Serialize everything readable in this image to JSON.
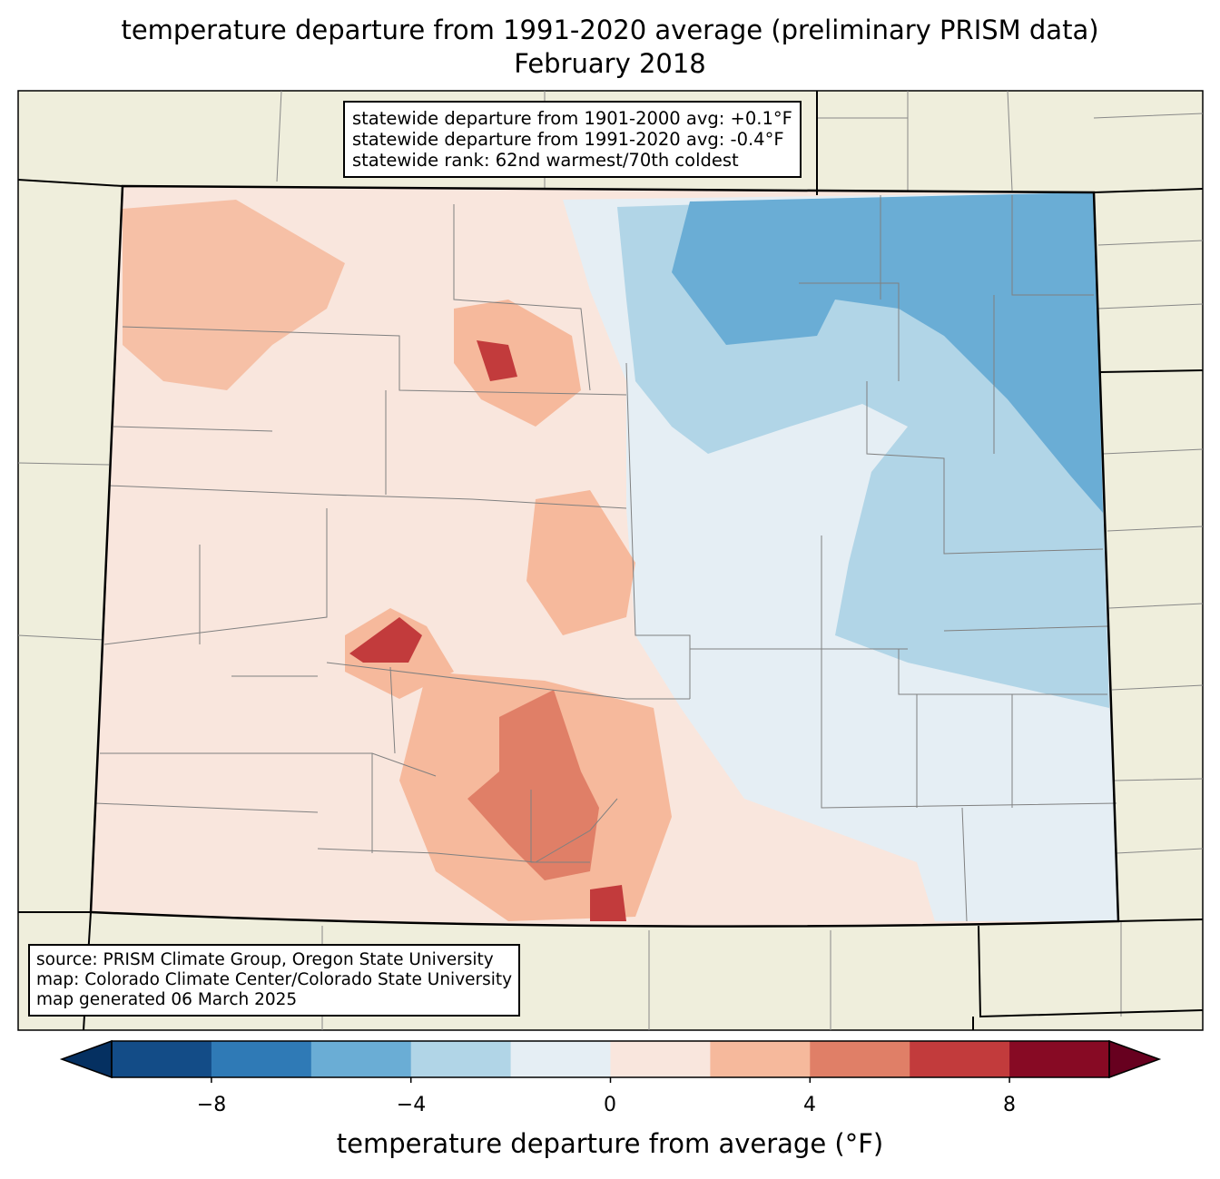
{
  "title": "temperature departure from 1991-2020 average (preliminary PRISM data)",
  "subtitle": "February 2018",
  "stats_box": {
    "lines": [
      "statewide departure from 1901-2000 avg: +0.1°F",
      "statewide departure from 1991-2020 avg: -0.4°F",
      "statewide rank: 62nd warmest/70th coldest"
    ]
  },
  "source_box": {
    "lines": [
      "source: PRISM Climate Group, Oregon State University",
      "map: Colorado Climate Center/Colorado State University",
      "map generated 06 March 2025"
    ]
  },
  "colorbar": {
    "label": "temperature departure from average (°F)",
    "levels": [
      -10,
      -8,
      -6,
      -4,
      -2,
      0,
      2,
      4,
      6,
      8,
      10
    ],
    "colors": [
      "#134c87",
      "#2f7ab6",
      "#6aadd5",
      "#b1d5e7",
      "#e5eef4",
      "#f9e6dd",
      "#f6b99c",
      "#e07f67",
      "#c23b3c",
      "#870a24"
    ],
    "extend_colors": [
      "#053061",
      "#67001f"
    ],
    "ticks": [
      "−8",
      "−4",
      "0",
      "4",
      "8"
    ]
  },
  "colors": {
    "land": "#efeedc",
    "border": "#000000",
    "county": "#808080"
  }
}
